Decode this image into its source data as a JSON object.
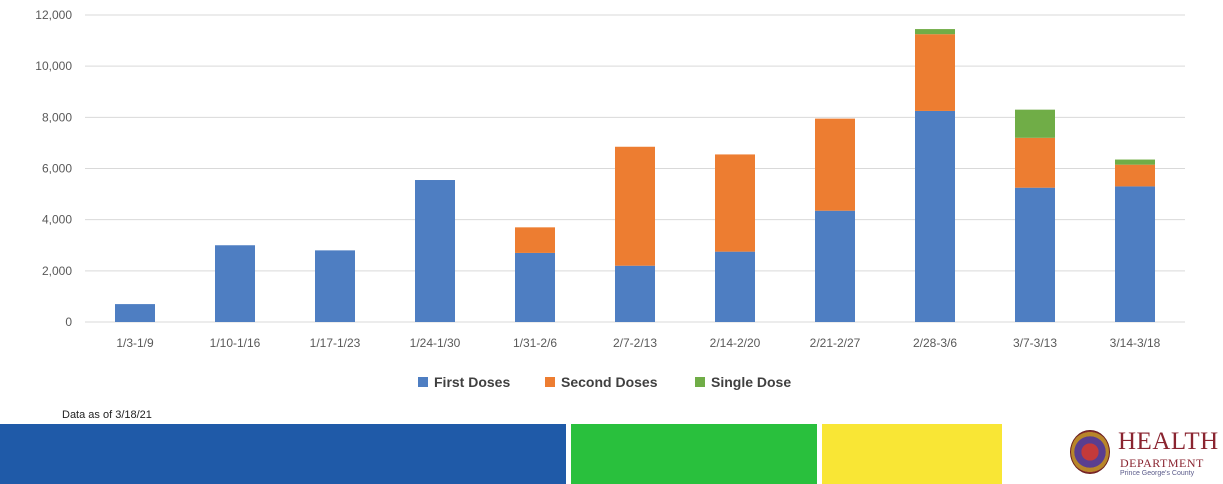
{
  "chart_data": {
    "type": "bar",
    "stacked": true,
    "categories": [
      "1/3-1/9",
      "1/10-1/16",
      "1/17-1/23",
      "1/24-1/30",
      "1/31-2/6",
      "2/7-2/13",
      "2/14-2/20",
      "2/21-2/27",
      "2/28-3/6",
      "3/7-3/13",
      "3/14-3/18"
    ],
    "series": [
      {
        "name": "First Doses",
        "color": "#4e7ec2",
        "values": [
          700,
          3000,
          2800,
          5550,
          2700,
          2200,
          2750,
          4350,
          8250,
          5250,
          5300
        ]
      },
      {
        "name": "Second Doses",
        "color": "#ed7d31",
        "values": [
          0,
          0,
          0,
          0,
          1000,
          4650,
          3800,
          3600,
          3000,
          1950,
          850
        ]
      },
      {
        "name": "Single Dose",
        "color": "#70ad47",
        "values": [
          0,
          0,
          0,
          0,
          0,
          0,
          0,
          0,
          200,
          1100,
          200
        ]
      }
    ],
    "ylim": [
      0,
      12000
    ],
    "yticks": [
      0,
      2000,
      4000,
      6000,
      8000,
      10000,
      12000
    ],
    "ytick_labels": [
      "0",
      "2,000",
      "4,000",
      "6,000",
      "8,000",
      "10,000",
      "12,000"
    ],
    "grid": true,
    "legend_position": "bottom"
  },
  "footer": {
    "note": "Data as of 3/18/21",
    "band_colors": [
      "#1f5aa8",
      "#29c03d",
      "#f9e635"
    ]
  },
  "logo": {
    "word": "HEALTH",
    "sub": "DEPARTMENT",
    "county": "Prince George's County"
  }
}
